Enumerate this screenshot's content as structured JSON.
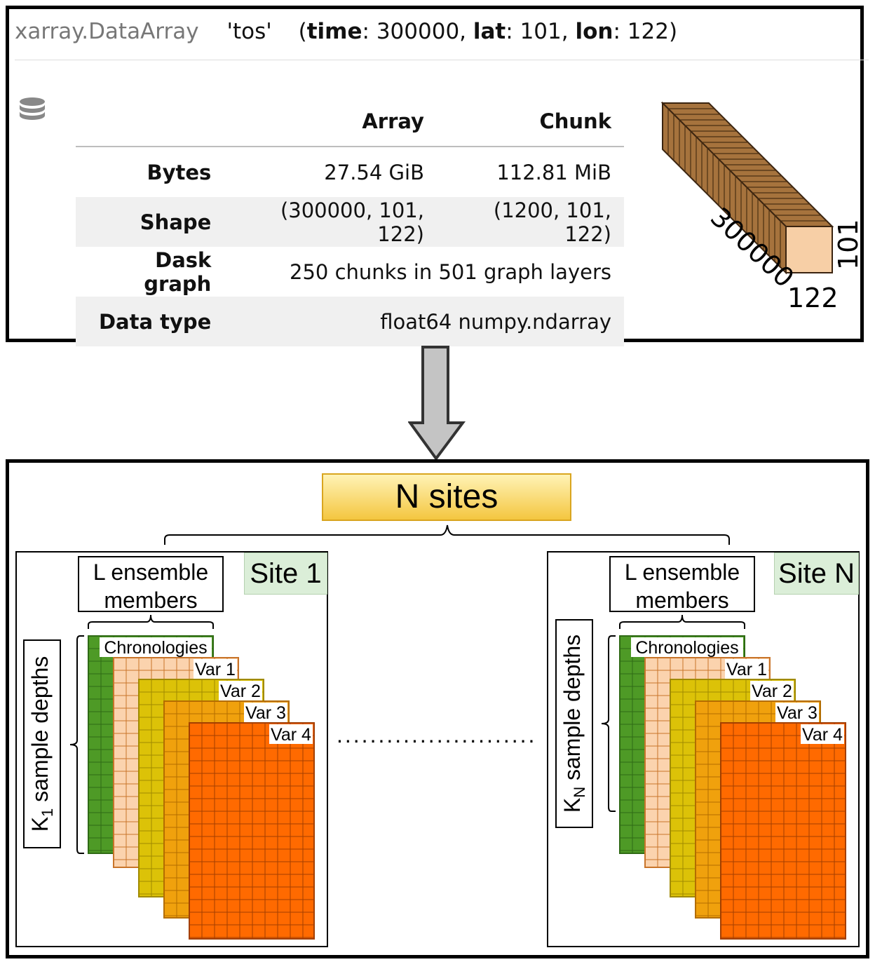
{
  "header": {
    "type_label": "xarray.DataArray",
    "var_name": "'tos'",
    "dims": [
      {
        "name": "time",
        "size": "300000"
      },
      {
        "name": "lat",
        "size": "101"
      },
      {
        "name": "lon",
        "size": "122"
      }
    ]
  },
  "table": {
    "columns": [
      "Array",
      "Chunk"
    ],
    "rows": [
      {
        "label": "Bytes",
        "array": "27.54 GiB",
        "chunk": "112.81 MiB"
      },
      {
        "label": "Shape",
        "array": "(300000, 101, 122)",
        "chunk": "(1200, 101, 122)"
      },
      {
        "label": "Dask graph",
        "value": "250 chunks in 501 graph layers"
      },
      {
        "label": "Data type",
        "value": "float64 numpy.ndarray"
      }
    ]
  },
  "cube": {
    "length_label": "300000",
    "width_label": "122",
    "height_label": "101"
  },
  "bottom": {
    "n_sites_label": "N sites",
    "dots": "........................",
    "sites": [
      {
        "label": "Site 1",
        "ensemble_label_line1": "L ensemble",
        "ensemble_label_line2": "members",
        "depth_prefix": "K",
        "depth_sub": "1",
        "depth_suffix": " sample depths",
        "layers": [
          "Chronologies",
          "Var 1",
          "Var 2",
          "Var 3",
          "Var 4"
        ]
      },
      {
        "label": "Site N",
        "ensemble_label_line1": "L ensemble",
        "ensemble_label_line2": "members",
        "depth_prefix": "K",
        "depth_sub": "N",
        "depth_suffix": " sample depths",
        "layers": [
          "Chronologies",
          "Var 1",
          "Var 2",
          "Var 3",
          "Var 4"
        ]
      }
    ]
  },
  "colors": {
    "chronologies": "#4e9a26",
    "var1": "#fbd3ae",
    "var2": "#dcc208",
    "var3": "#f0a10d",
    "var4": "#ff6a00",
    "cube_side": "#a6733d",
    "cube_face": "#f7cfa6",
    "n_sites_box": "#f4c640",
    "site_label_bg": "#dbeed8"
  }
}
